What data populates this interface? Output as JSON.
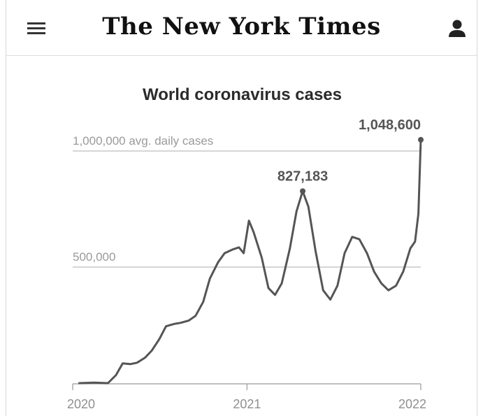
{
  "header": {
    "logo_text": "The New York Times",
    "menu_icon": "hamburger-menu-icon",
    "user_icon": "user-account-icon"
  },
  "chart_data": {
    "type": "line",
    "title": "World coronavirus cases",
    "ylabel": "avg. daily cases",
    "y_gridlines": [
      {
        "value": 500000,
        "label": "500,000"
      },
      {
        "value": 1000000,
        "label": "1,000,000 avg. daily cases"
      }
    ],
    "x_ticks": [
      "2020",
      "2021",
      "2022"
    ],
    "x_range": [
      "2020-01-01",
      "2022-01-01"
    ],
    "ylim": [
      0,
      1048600
    ],
    "line_color": "#555555",
    "annotations": [
      {
        "date": "2021-04-28",
        "value": 827183,
        "label": "827,183"
      },
      {
        "date": "2022-01-01",
        "value": 1048600,
        "label": "1,048,600"
      }
    ],
    "series": [
      {
        "values": [
          [
            "2020-01-15",
            0
          ],
          [
            "2020-02-15",
            2000
          ],
          [
            "2020-03-15",
            0
          ],
          [
            "2020-04-01",
            35000
          ],
          [
            "2020-04-15",
            85000
          ],
          [
            "2020-05-01",
            82000
          ],
          [
            "2020-05-15",
            88000
          ],
          [
            "2020-06-01",
            110000
          ],
          [
            "2020-06-15",
            140000
          ],
          [
            "2020-07-01",
            190000
          ],
          [
            "2020-07-15",
            245000
          ],
          [
            "2020-08-01",
            255000
          ],
          [
            "2020-08-15",
            260000
          ],
          [
            "2020-09-01",
            270000
          ],
          [
            "2020-09-15",
            290000
          ],
          [
            "2020-10-01",
            350000
          ],
          [
            "2020-10-15",
            450000
          ],
          [
            "2020-11-01",
            520000
          ],
          [
            "2020-11-15",
            560000
          ],
          [
            "2020-12-01",
            575000
          ],
          [
            "2020-12-15",
            585000
          ],
          [
            "2020-12-25",
            560000
          ],
          [
            "2021-01-05",
            700000
          ],
          [
            "2021-01-15",
            650000
          ],
          [
            "2021-02-01",
            540000
          ],
          [
            "2021-02-15",
            410000
          ],
          [
            "2021-03-01",
            380000
          ],
          [
            "2021-03-15",
            430000
          ],
          [
            "2021-04-01",
            580000
          ],
          [
            "2021-04-15",
            740000
          ],
          [
            "2021-04-28",
            827183
          ],
          [
            "2021-05-10",
            760000
          ],
          [
            "2021-05-25",
            570000
          ],
          [
            "2021-06-10",
            400000
          ],
          [
            "2021-06-25",
            360000
          ],
          [
            "2021-07-10",
            420000
          ],
          [
            "2021-07-25",
            560000
          ],
          [
            "2021-08-10",
            630000
          ],
          [
            "2021-08-25",
            620000
          ],
          [
            "2021-09-10",
            560000
          ],
          [
            "2021-09-25",
            480000
          ],
          [
            "2021-10-10",
            430000
          ],
          [
            "2021-10-25",
            400000
          ],
          [
            "2021-11-10",
            420000
          ],
          [
            "2021-11-25",
            480000
          ],
          [
            "2021-12-10",
            580000
          ],
          [
            "2021-12-20",
            610000
          ],
          [
            "2021-12-27",
            730000
          ],
          [
            "2022-01-01",
            1048600
          ]
        ]
      }
    ]
  }
}
